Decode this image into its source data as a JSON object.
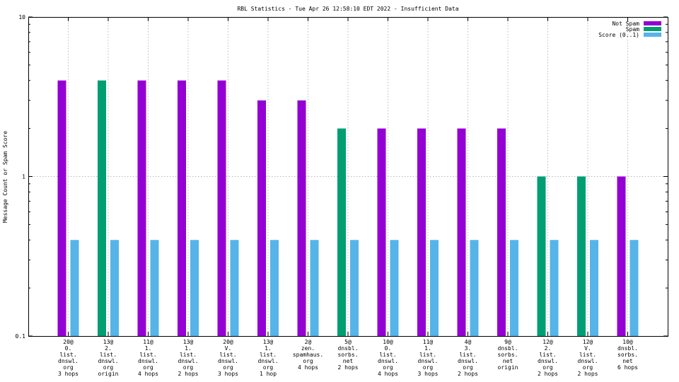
{
  "chart_data": {
    "type": "bar",
    "title": "RBL Statistics - Tue Apr 26 12:58:10 EDT 2022 - Insufficient Data",
    "ylabel": "Message Count or Spam Score",
    "xlabel": "",
    "yscale": "log",
    "ylim": [
      0.1,
      10
    ],
    "yticks": [
      {
        "value": 0.1,
        "label": "0.1"
      },
      {
        "value": 1,
        "label": "1"
      },
      {
        "value": 10,
        "label": "10"
      }
    ],
    "grid": true,
    "legend_position": "top-right",
    "categories": [
      [
        "20@",
        "0.",
        "list.",
        "dnswl.",
        "org",
        "3 hops"
      ],
      [
        "13@",
        "2.",
        "list.",
        "dnswl.",
        "org",
        "origin"
      ],
      [
        "11@",
        "1.",
        "list.",
        "dnswl.",
        "org",
        "4 hops"
      ],
      [
        "13@",
        "1.",
        "list.",
        "dnswl.",
        "org",
        "2 hops"
      ],
      [
        "20@",
        "V.",
        "list.",
        "dnswl.",
        "org",
        "3 hops"
      ],
      [
        "13@",
        "1.",
        "list.",
        "dnswl.",
        "org",
        "1 hop"
      ],
      [
        "2@",
        "zen.",
        "spamhaus.",
        "org",
        "4 hops"
      ],
      [
        "5@",
        "dnsbl.",
        "sorbs.",
        "net",
        "2 hops"
      ],
      [
        "10@",
        "0.",
        "list.",
        "dnswl.",
        "org",
        "4 hops"
      ],
      [
        "11@",
        "1.",
        "list.",
        "dnswl.",
        "org",
        "3 hops"
      ],
      [
        "4@",
        "3.",
        "list.",
        "dnswl.",
        "org",
        "2 hops"
      ],
      [
        "9@",
        "dnsbl.",
        "sorbs.",
        "net",
        "origin"
      ],
      [
        "12@",
        "2.",
        "list.",
        "dnswl.",
        "org",
        "2 hops"
      ],
      [
        "12@",
        "V.",
        "list.",
        "dnswl.",
        "org",
        "2 hops"
      ],
      [
        "10@",
        "dnsbl.",
        "sorbs.",
        "net",
        "6 hops"
      ]
    ],
    "series": [
      {
        "name": "Not Spam",
        "color": "#9400d3",
        "values": [
          4,
          null,
          4,
          4,
          4,
          3,
          3,
          null,
          2,
          2,
          2,
          2,
          null,
          null,
          1
        ]
      },
      {
        "name": "Spam",
        "color": "#009e73",
        "values": [
          null,
          4,
          null,
          null,
          null,
          null,
          null,
          2,
          null,
          null,
          null,
          null,
          1,
          1,
          null
        ]
      },
      {
        "name": "Score (0..1)",
        "color": "#56b4e9",
        "values": [
          0.4,
          0.4,
          0.4,
          0.4,
          0.4,
          0.4,
          0.4,
          0.4,
          0.4,
          0.4,
          0.4,
          0.4,
          0.4,
          0.4,
          0.4
        ]
      }
    ]
  }
}
